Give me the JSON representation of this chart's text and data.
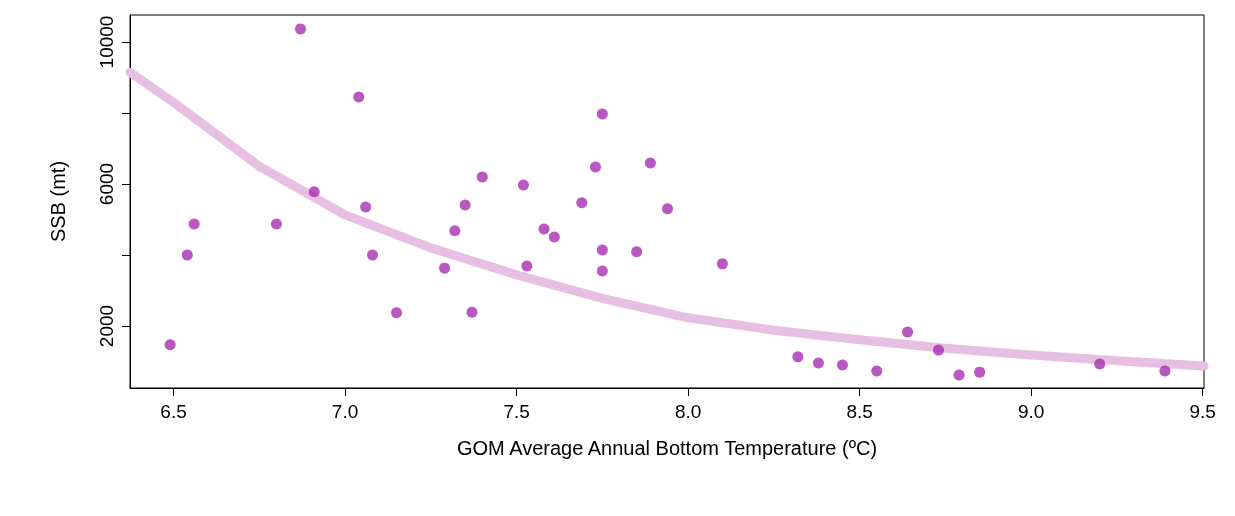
{
  "chart_data": {
    "type": "scatter",
    "xlabel": "GOM Average Annual Bottom Temperature (ºC)",
    "ylabel": "SSB (mt)",
    "xlim": [
      6.373,
      9.504
    ],
    "ylim": [
      253,
      10761
    ],
    "xticks": [
      {
        "value": 6.5,
        "label": "6.5"
      },
      {
        "value": 7.0,
        "label": "7.0"
      },
      {
        "value": 7.5,
        "label": "7.5"
      },
      {
        "value": 8.0,
        "label": "8.0"
      },
      {
        "value": 8.5,
        "label": "8.5"
      },
      {
        "value": 9.0,
        "label": "9.0"
      },
      {
        "value": 9.5,
        "label": "9.5"
      }
    ],
    "yticks": [
      2000,
      {
        "value": 4000,
        "label": null
      },
      6000,
      {
        "value": 8000,
        "label": null
      },
      10000
    ],
    "grid": false,
    "marker": "circle",
    "series": [
      {
        "color": "#a62eb0",
        "x": [
          6.49,
          6.54,
          6.56,
          6.8,
          6.87,
          6.91,
          7.04,
          7.06,
          7.08,
          7.15,
          7.29,
          7.32,
          7.35,
          7.37,
          7.4,
          7.52,
          7.53,
          7.58,
          7.61,
          7.69,
          7.73,
          7.75,
          7.75,
          7.75,
          7.85,
          7.89,
          7.94,
          8.1,
          8.32,
          8.38,
          8.45,
          8.55,
          8.64,
          8.73,
          8.79,
          8.85,
          9.2,
          9.39
        ],
        "values": [
          1470,
          4000,
          4870,
          4870,
          10370,
          5780,
          8450,
          5350,
          4000,
          2370,
          3630,
          4680,
          5410,
          2390,
          6200,
          5970,
          3690,
          4730,
          4510,
          5470,
          6480,
          7970,
          4140,
          3550,
          4090,
          6590,
          5300,
          3750,
          1130,
          960,
          900,
          730,
          1830,
          1320,
          620,
          700,
          930,
          730
        ]
      },
      {
        "type": "line",
        "color": "#e6bfe3",
        "marker": "none",
        "x": [
          6.373,
          6.5,
          6.75,
          7.0,
          7.25,
          7.5,
          7.75,
          8.0,
          8.25,
          8.5,
          8.75,
          9.0,
          9.25,
          9.504
        ],
        "values": [
          9150,
          8300,
          6500,
          5130,
          4200,
          3440,
          2780,
          2230,
          1880,
          1610,
          1370,
          1180,
          1020,
          870
        ]
      }
    ]
  }
}
